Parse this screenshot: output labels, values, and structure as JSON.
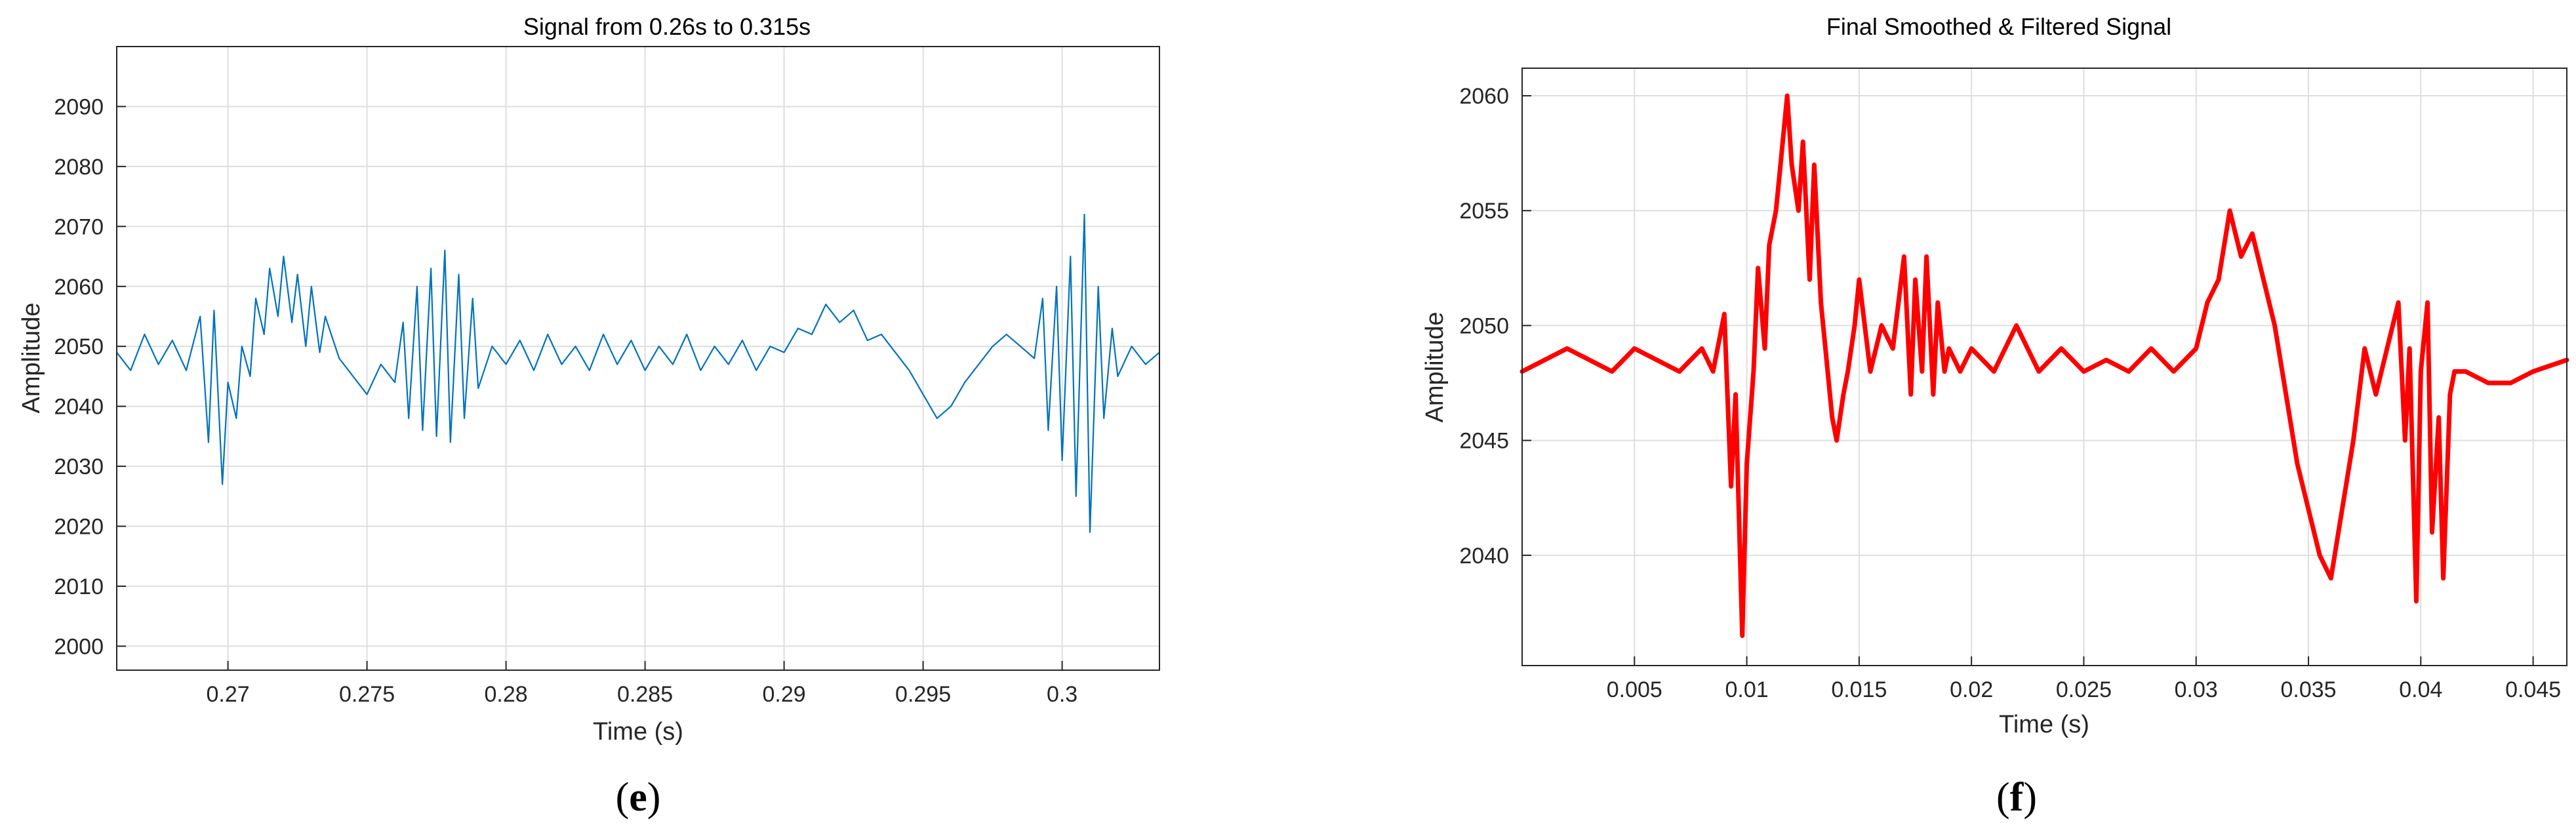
{
  "chart_data": [
    {
      "type": "line",
      "panel_label": {
        "open": "(",
        "letter": "e",
        "close": ")"
      },
      "title": "Signal from 0.26s to 0.315s",
      "xlabel": "Time (s)",
      "ylabel": "Amplitude",
      "xlim": [
        0.266,
        0.3035
      ],
      "ylim": [
        1996,
        2100
      ],
      "xticks": [
        {
          "value": 0.27,
          "label": "0.27"
        },
        {
          "value": 0.275,
          "label": "0.275"
        },
        {
          "value": 0.28,
          "label": "0.28"
        },
        {
          "value": 0.285,
          "label": "0.285"
        },
        {
          "value": 0.29,
          "label": "0.29"
        },
        {
          "value": 0.295,
          "label": "0.295"
        },
        {
          "value": 0.3,
          "label": "0.3"
        }
      ],
      "yticks": [
        {
          "value": 2000,
          "label": "2000"
        },
        {
          "value": 2010,
          "label": "2010"
        },
        {
          "value": 2020,
          "label": "2020"
        },
        {
          "value": 2030,
          "label": "2030"
        },
        {
          "value": 2040,
          "label": "2040"
        },
        {
          "value": 2050,
          "label": "2050"
        },
        {
          "value": 2060,
          "label": "2060"
        },
        {
          "value": 2070,
          "label": "2070"
        },
        {
          "value": 2080,
          "label": "2080"
        },
        {
          "value": 2090,
          "label": "2090"
        }
      ],
      "grid": true,
      "line_color": "#0072bd",
      "series": [
        {
          "x": [
            0.266,
            0.2665,
            0.267,
            0.2675,
            0.268,
            0.2685,
            0.269,
            0.2693,
            0.2695,
            0.2698,
            0.27,
            0.2703,
            0.2705,
            0.2708,
            0.271,
            0.2713,
            0.2715,
            0.2718,
            0.272,
            0.2723,
            0.2725,
            0.2728,
            0.273,
            0.2733,
            0.2735,
            0.274,
            0.2745,
            0.275,
            0.2755,
            0.276,
            0.2763,
            0.2765,
            0.2768,
            0.277,
            0.2773,
            0.2775,
            0.2778,
            0.278,
            0.2783,
            0.2785,
            0.2788,
            0.279,
            0.2795,
            0.28,
            0.2805,
            0.281,
            0.2815,
            0.282,
            0.2825,
            0.283,
            0.2835,
            0.284,
            0.2845,
            0.285,
            0.2855,
            0.286,
            0.2865,
            0.287,
            0.2875,
            0.288,
            0.2885,
            0.289,
            0.2895,
            0.29,
            0.2905,
            0.291,
            0.2915,
            0.292,
            0.2925,
            0.293,
            0.2935,
            0.294,
            0.2945,
            0.295,
            0.2955,
            0.296,
            0.2965,
            0.297,
            0.2975,
            0.298,
            0.2985,
            0.299,
            0.2993,
            0.2995,
            0.2998,
            0.3,
            0.3003,
            0.3005,
            0.3008,
            0.301,
            0.3013,
            0.3015,
            0.3018,
            0.302,
            0.3025,
            0.303,
            0.3035
          ],
          "y": [
            2049,
            2046,
            2052,
            2047,
            2051,
            2046,
            2055,
            2034,
            2056,
            2027,
            2044,
            2038,
            2050,
            2045,
            2058,
            2052,
            2063,
            2055,
            2065,
            2054,
            2062,
            2050,
            2060,
            2049,
            2055,
            2048,
            2045,
            2042,
            2047,
            2044,
            2054,
            2038,
            2060,
            2036,
            2063,
            2035,
            2066,
            2034,
            2062,
            2038,
            2058,
            2043,
            2050,
            2047,
            2051,
            2046,
            2052,
            2047,
            2050,
            2046,
            2052,
            2047,
            2051,
            2046,
            2050,
            2047,
            2052,
            2046,
            2050,
            2047,
            2051,
            2046,
            2050,
            2049,
            2053,
            2052,
            2057,
            2054,
            2056,
            2051,
            2052,
            2049,
            2046,
            2042,
            2038,
            2040,
            2044,
            2047,
            2050,
            2052,
            2050,
            2048,
            2058,
            2036,
            2060,
            2031,
            2065,
            2025,
            2072,
            2019,
            2060,
            2038,
            2053,
            2045,
            2050,
            2047,
            2049
          ]
        }
      ]
    },
    {
      "type": "line",
      "panel_label": {
        "open": "(",
        "letter": "f",
        "close": ")"
      },
      "title": "Final Smoothed & Filtered Signal",
      "xlabel": "Time (s)",
      "ylabel": "Amplitude",
      "xlim": [
        0,
        0.0465
      ],
      "ylim": [
        2035.2,
        2061.2
      ],
      "xticks": [
        {
          "value": 0.005,
          "label": "0.005"
        },
        {
          "value": 0.01,
          "label": "0.01"
        },
        {
          "value": 0.015,
          "label": "0.015"
        },
        {
          "value": 0.02,
          "label": "0.02"
        },
        {
          "value": 0.025,
          "label": "0.025"
        },
        {
          "value": 0.03,
          "label": "0.03"
        },
        {
          "value": 0.035,
          "label": "0.035"
        },
        {
          "value": 0.04,
          "label": "0.04"
        },
        {
          "value": 0.045,
          "label": "0.045"
        }
      ],
      "yticks": [
        {
          "value": 2040,
          "label": "2040"
        },
        {
          "value": 2045,
          "label": "2045"
        },
        {
          "value": 2050,
          "label": "2050"
        },
        {
          "value": 2055,
          "label": "2055"
        },
        {
          "value": 2060,
          "label": "2060"
        }
      ],
      "grid": true,
      "line_color": "#ff0000",
      "series": [
        {
          "x": [
            0,
            0.001,
            0.002,
            0.003,
            0.004,
            0.005,
            0.006,
            0.007,
            0.008,
            0.0085,
            0.009,
            0.0093,
            0.0095,
            0.0098,
            0.01,
            0.0103,
            0.0105,
            0.0108,
            0.011,
            0.0113,
            0.0115,
            0.0118,
            0.012,
            0.0123,
            0.0125,
            0.0128,
            0.013,
            0.0133,
            0.0135,
            0.0138,
            0.014,
            0.0143,
            0.0145,
            0.0148,
            0.015,
            0.0155,
            0.016,
            0.0165,
            0.017,
            0.0173,
            0.0175,
            0.0178,
            0.018,
            0.0183,
            0.0185,
            0.0188,
            0.019,
            0.0195,
            0.02,
            0.021,
            0.022,
            0.023,
            0.024,
            0.025,
            0.026,
            0.027,
            0.028,
            0.029,
            0.03,
            0.0305,
            0.031,
            0.0315,
            0.032,
            0.0325,
            0.033,
            0.0335,
            0.034,
            0.0345,
            0.035,
            0.0355,
            0.036,
            0.0365,
            0.037,
            0.0375,
            0.038,
            0.0385,
            0.039,
            0.0393,
            0.0395,
            0.0398,
            0.04,
            0.0403,
            0.0405,
            0.0408,
            0.041,
            0.0413,
            0.0415,
            0.042,
            0.043,
            0.044,
            0.045,
            0.0465
          ],
          "y": [
            2048,
            2048.5,
            2049,
            2048.5,
            2048,
            2049,
            2048.5,
            2048,
            2049,
            2048,
            2050.5,
            2043,
            2047,
            2036.5,
            2044,
            2048,
            2052.5,
            2049,
            2053.5,
            2055,
            2057,
            2060,
            2057,
            2055,
            2058,
            2052,
            2057,
            2051,
            2049,
            2046,
            2045,
            2047,
            2048,
            2050,
            2052,
            2048,
            2050,
            2049,
            2053,
            2047,
            2052,
            2048,
            2053,
            2047,
            2051,
            2048,
            2049,
            2048,
            2049,
            2048,
            2050,
            2048,
            2049,
            2048,
            2048.5,
            2048,
            2049,
            2048,
            2049,
            2051,
            2052,
            2055,
            2053,
            2054,
            2052,
            2050,
            2047,
            2044,
            2042,
            2040,
            2039,
            2042,
            2045,
            2049,
            2047,
            2049,
            2051,
            2045,
            2049,
            2038,
            2048,
            2051,
            2041,
            2046,
            2039,
            2047,
            2048,
            2048,
            2047.5,
            2047.5,
            2048,
            2048.5
          ]
        }
      ]
    }
  ]
}
